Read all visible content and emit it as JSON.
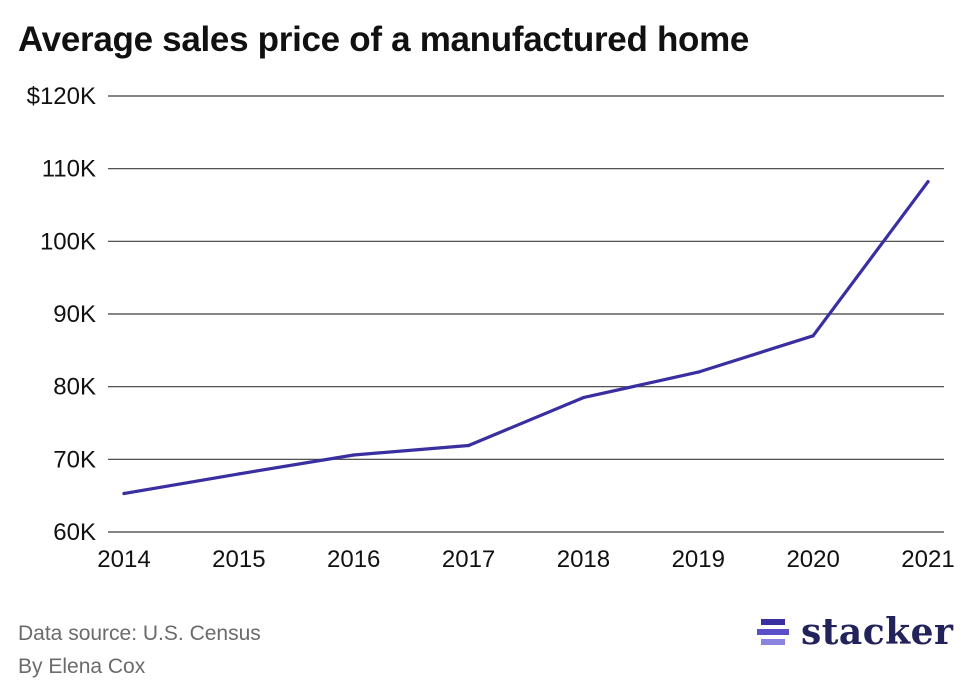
{
  "title": "Average sales price of a manufactured home",
  "footer": {
    "source": "Data source: U.S. Census",
    "byline": "By Elena Cox"
  },
  "logo": {
    "wordmark": "stacker",
    "icon": "stacker-logo-icon"
  },
  "colors": {
    "line": "#3a2fa0",
    "grid": "#3c3c3c",
    "text": "#111111",
    "footer": "#6b6b6b",
    "logo": "#23235c",
    "logo_bars": [
      "#3a2fa0",
      "#5a4fc8",
      "#8a84e0"
    ]
  },
  "chart_data": {
    "type": "line",
    "title": "Average sales price of a manufactured home",
    "xlabel": "",
    "ylabel": "",
    "x": [
      2014,
      2015,
      2016,
      2017,
      2018,
      2019,
      2020,
      2021
    ],
    "series": [
      {
        "values": [
          65300,
          68000,
          70600,
          71900,
          78500,
          82000,
          87000,
          108200
        ]
      }
    ],
    "ylim": [
      60000,
      120000
    ],
    "yticks": [
      60000,
      70000,
      80000,
      90000,
      100000,
      110000,
      120000
    ],
    "ytick_labels": [
      "60K",
      "70K",
      "80K",
      "90K",
      "100K",
      "110K",
      "$120K"
    ],
    "xtick_labels": [
      "2014",
      "2015",
      "2016",
      "2017",
      "2018",
      "2019",
      "2020",
      "2021"
    ],
    "grid": true,
    "legend": "none"
  }
}
